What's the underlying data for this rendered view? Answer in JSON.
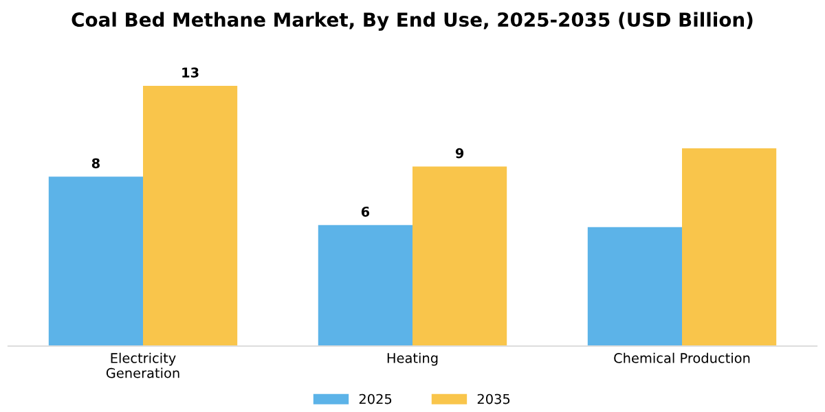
{
  "chart_data": {
    "type": "bar",
    "title": "Coal Bed Methane Market, By End Use, 2025-2035 (USD Billion)",
    "categories": [
      "Electricity\nGeneration",
      "Heating",
      "Chemical Production"
    ],
    "series": [
      {
        "name": "2025",
        "color": "#5cb3e8",
        "values": [
          8.4,
          6.0,
          5.9
        ],
        "value_labels": [
          "8",
          "6",
          null
        ]
      },
      {
        "name": "2035",
        "color": "#f9c54b",
        "values": [
          12.9,
          8.9,
          9.8
        ],
        "value_labels": [
          "13",
          "9",
          null
        ]
      }
    ],
    "tick_labels": "x",
    "legend": "bottom",
    "grid": false
  }
}
